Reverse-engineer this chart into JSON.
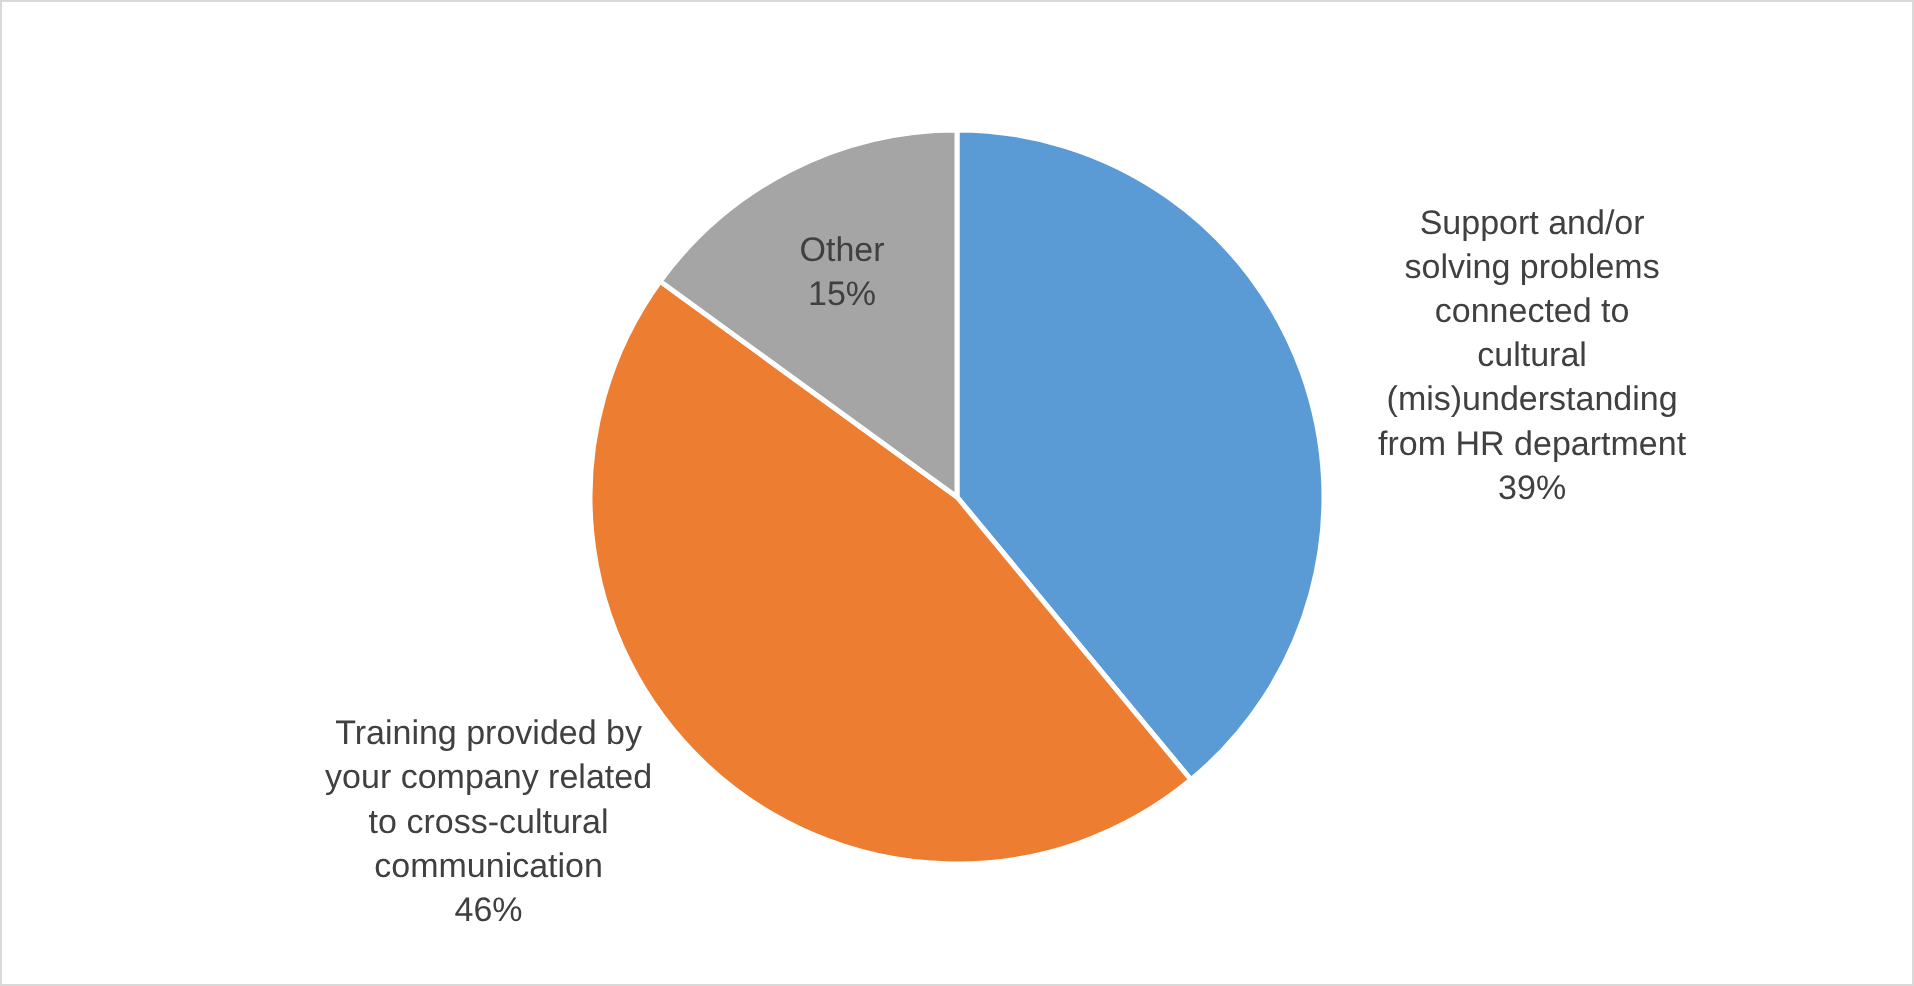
{
  "chart_data": {
    "type": "pie",
    "categories": [
      "Support and/or solving problems connected to cultural (mis)understanding from HR department",
      "Training provided by your company related to cross-cultural communication",
      "Other"
    ],
    "values": [
      39,
      46,
      15
    ],
    "value_labels": [
      "39%",
      "46%",
      "15%"
    ],
    "colors": [
      "#5b9bd5",
      "#ed7d31",
      "#a5a5a5"
    ],
    "legend": false
  }
}
